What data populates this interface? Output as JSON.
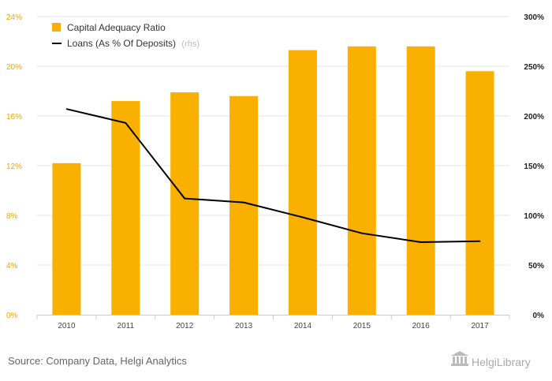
{
  "chart_data": {
    "type": "bar",
    "categories": [
      "2010",
      "2011",
      "2012",
      "2013",
      "2014",
      "2015",
      "2016",
      "2017"
    ],
    "series": [
      {
        "name": "Capital Adequacy Ratio",
        "axis": "left",
        "kind": "bar",
        "color": "#f9b000",
        "values": [
          12.2,
          17.2,
          17.9,
          17.6,
          21.3,
          21.6,
          21.6,
          19.6
        ]
      },
      {
        "name": "Loans (As % Of Deposits)",
        "rhs_tag": "(rhs)",
        "axis": "right",
        "kind": "line",
        "color": "#000000",
        "values": [
          207,
          193,
          117,
          113,
          98,
          82,
          73,
          74
        ]
      }
    ],
    "y_left": {
      "min": 0,
      "max": 24,
      "ticks": [
        "0%",
        "4%",
        "8%",
        "12%",
        "16%",
        "20%",
        "24%"
      ],
      "color": "#f0a500"
    },
    "y_right": {
      "min": 0,
      "max": 300,
      "ticks": [
        "0%",
        "50%",
        "100%",
        "150%",
        "200%",
        "250%",
        "300%"
      ],
      "color": "#222222"
    },
    "grid": true,
    "legend": "top-left"
  },
  "footer": {
    "source": "Source: Company Data, Helgi Analytics",
    "brand": "HelgiLibrary"
  }
}
